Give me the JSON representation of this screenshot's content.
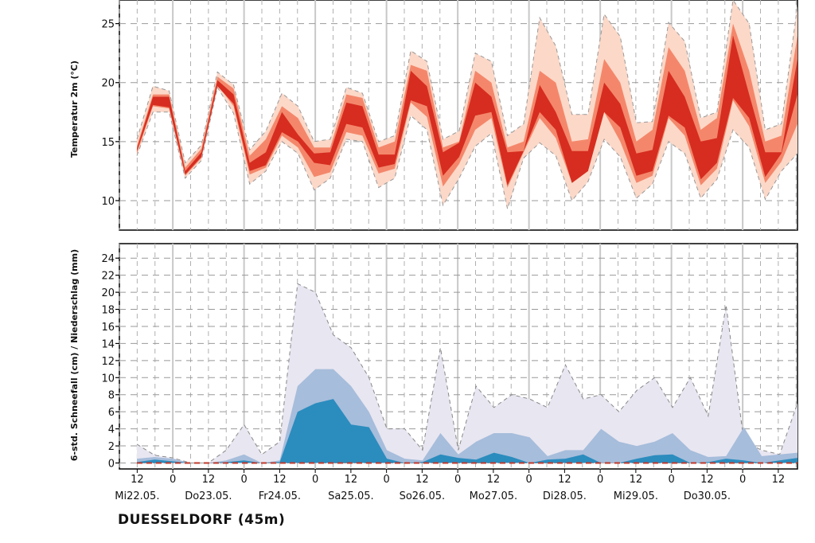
{
  "station": "DUESSELDORF (45m)",
  "colors": {
    "temp_inner": "#d62d20",
    "temp_mid": "#f4876b",
    "temp_outer": "#fcd8c8",
    "precip_inner": "#2b8cbe",
    "precip_mid": "#a6bddb",
    "precip_outer": "#e8e6f1",
    "median_line": "#c0392b",
    "grid": "#b0b0b0",
    "day_line": "#c8c8c8"
  },
  "chart_data": [
    {
      "type": "area",
      "ylabel": "Temperatur 2m (°C)",
      "ylim": [
        7.5,
        27
      ],
      "yticks": [
        10,
        15,
        20,
        25
      ],
      "grid": true,
      "x_hours_start": 6,
      "x_step_hours": 6,
      "bands": {
        "p10": [
          13.8,
          17.5,
          17.5,
          11.9,
          13.4,
          19.6,
          17.4,
          11.4,
          12.5,
          15.0,
          14.0,
          10.9,
          11.9,
          15.2,
          15.0,
          11.1,
          11.9,
          17.2,
          16.0,
          9.6,
          11.9,
          14.6,
          15.7,
          9.3,
          13.6,
          14.9,
          13.8,
          10.0,
          11.6,
          15.2,
          13.7,
          10.2,
          11.4,
          15.0,
          14.0,
          10.2,
          11.8,
          16.0,
          14.5,
          10.1,
          12.5,
          14.0
        ],
        "p25": [
          14.0,
          18.0,
          17.8,
          12.1,
          13.6,
          19.8,
          18.0,
          12.2,
          12.8,
          15.5,
          14.5,
          12.0,
          12.4,
          15.8,
          15.5,
          12.3,
          12.7,
          18.3,
          17.1,
          11.2,
          13.1,
          16.0,
          17.0,
          11.1,
          14.1,
          17.0,
          15.3,
          11.5,
          12.5,
          17.5,
          15.0,
          11.5,
          12.1,
          17.0,
          15.5,
          11.3,
          12.7,
          18.5,
          16.3,
          11.5,
          13.3,
          16.5
        ],
        "p40": [
          14.2,
          18.1,
          17.9,
          12.2,
          13.7,
          19.7,
          18.2,
          12.5,
          13.0,
          15.8,
          15.0,
          13.2,
          13.0,
          16.5,
          16.2,
          12.8,
          13.1,
          18.5,
          18.0,
          12.1,
          13.7,
          17.2,
          17.5,
          11.3,
          14.2,
          17.5,
          16.0,
          11.5,
          12.5,
          17.5,
          16.2,
          12.1,
          12.5,
          17.2,
          16.2,
          11.8,
          13.2,
          18.7,
          17.0,
          12.0,
          14.0,
          19.0
        ],
        "p60": [
          14.4,
          18.8,
          18.8,
          12.5,
          14.1,
          20.2,
          19.0,
          13.2,
          14.1,
          17.5,
          15.6,
          14.0,
          14.1,
          18.3,
          18.0,
          13.9,
          13.9,
          21.0,
          19.7,
          14.1,
          14.9,
          20.0,
          18.8,
          14.1,
          14.2,
          19.8,
          17.5,
          14.2,
          14.2,
          20.0,
          18.2,
          14.0,
          14.3,
          21.0,
          18.8,
          15.0,
          15.3,
          24.0,
          19.0,
          14.1,
          14.1,
          22.0
        ],
        "p75": [
          14.6,
          19.0,
          19.0,
          12.8,
          14.4,
          20.5,
          19.5,
          13.8,
          15.2,
          18.0,
          17.0,
          14.5,
          14.5,
          19.0,
          18.7,
          14.5,
          15.0,
          21.5,
          21.0,
          14.5,
          15.0,
          21.0,
          20.0,
          14.5,
          15.0,
          21.0,
          20.0,
          15.0,
          15.2,
          22.0,
          20.0,
          15.0,
          16.0,
          23.0,
          21.0,
          16.0,
          17.0,
          25.0,
          21.0,
          15.0,
          15.5,
          24.0
        ],
        "p90": [
          15.2,
          19.7,
          19.3,
          13.2,
          14.7,
          20.9,
          19.8,
          14.3,
          15.9,
          19.1,
          18.0,
          15.0,
          15.2,
          19.6,
          19.1,
          15.0,
          15.5,
          22.7,
          21.8,
          15.2,
          15.9,
          22.5,
          21.8,
          15.5,
          16.5,
          25.5,
          23.1,
          17.3,
          17.3,
          25.8,
          23.9,
          16.6,
          16.7,
          25.1,
          23.5,
          17.0,
          17.5,
          27.0,
          25.0,
          16.0,
          16.5,
          26.5
        ]
      },
      "medians": [
        14.2,
        18.3,
        18.3,
        12.3,
        13.9,
        19.9,
        18.5,
        12.8,
        13.4,
        16.4,
        15.3,
        13.6,
        13.6,
        17.3,
        17.1,
        13.1,
        13.5,
        19.5,
        18.4,
        13.0,
        14.2,
        18.5,
        18.0,
        12.8,
        14.2,
        18.5,
        16.7,
        12.8,
        13.3,
        18.5,
        17.2,
        13.2,
        13.5,
        18.8,
        17.4,
        13.5,
        14.1,
        21.0,
        18.0,
        13.0,
        14.2,
        20.5
      ]
    },
    {
      "type": "area",
      "ylabel": "6-std. Schneefall (cm) / Niederschlag (mm)",
      "ylim": [
        -0.7,
        25.7
      ],
      "yticks": [
        0,
        2,
        4,
        6,
        8,
        10,
        12,
        14,
        16,
        18,
        20,
        22,
        24
      ],
      "grid": true,
      "x_hours_start": 6,
      "x_step_hours": 6,
      "bands": {
        "outer": [
          2.2,
          0.9,
          0.6,
          0.0,
          0.0,
          1.5,
          4.5,
          1.0,
          2.5,
          21.0,
          20.0,
          15.0,
          13.5,
          10.0,
          4.0,
          4.0,
          1.5,
          13.5,
          1.5,
          9.0,
          6.5,
          8.0,
          7.5,
          6.5,
          11.5,
          7.5,
          8.0,
          6.0,
          8.5,
          10.0,
          6.5,
          10.0,
          5.5,
          18.5,
          2.5,
          1.5,
          1.0,
          7.0
        ],
        "mid": [
          0.5,
          0.7,
          0.5,
          0.0,
          0.0,
          0.3,
          1.0,
          0.0,
          0.3,
          9.0,
          11.0,
          11.0,
          9.0,
          6.0,
          1.5,
          0.5,
          0.3,
          3.5,
          1.0,
          2.5,
          3.5,
          3.5,
          3.0,
          0.8,
          1.5,
          1.5,
          4.0,
          2.5,
          2.0,
          2.5,
          3.5,
          1.5,
          0.7,
          0.8,
          4.2,
          0.8,
          1.0,
          1.2
        ],
        "inner": [
          0.1,
          0.4,
          0.2,
          0.0,
          0.0,
          0.1,
          0.3,
          0.0,
          0.1,
          6.0,
          7.0,
          7.5,
          4.5,
          4.2,
          0.5,
          0.0,
          0.1,
          1.0,
          0.6,
          0.4,
          1.2,
          0.7,
          0.0,
          0.4,
          0.5,
          1.0,
          0.0,
          0.0,
          0.5,
          0.9,
          1.0,
          0.0,
          0.1,
          0.5,
          0.3,
          0.0,
          0.3,
          0.6
        ],
        "median": [
          0.0,
          0.1,
          0.0,
          0.0,
          0.0,
          0.0,
          0.1,
          0.0,
          0.0,
          0.9,
          1.7,
          0.6,
          0.3,
          0.6,
          0.1,
          0.0,
          0.0,
          0.0,
          0.1,
          0.0,
          0.0,
          0.1,
          0.0,
          0.0,
          0.0,
          0.1,
          0.1,
          0.0,
          0.0,
          0.1,
          0.1,
          0.0,
          0.0,
          0.1,
          0.1,
          0.0,
          0.0,
          0.1
        ]
      }
    }
  ],
  "x_axis": {
    "hour_labels": [
      "12",
      "0",
      "12",
      "0",
      "12",
      "0",
      "12",
      "0",
      "12",
      "0",
      "12",
      "0",
      "12",
      "0",
      "12",
      "0",
      "12",
      "0",
      "12",
      "0"
    ],
    "day_labels": [
      "Mi22.05.",
      "Do23.05.",
      "Fr24.05.",
      "Sa25.05.",
      "So26.05.",
      "Mo27.05.",
      "Di28.05.",
      "Mi29.05.",
      "Do30.05."
    ]
  }
}
